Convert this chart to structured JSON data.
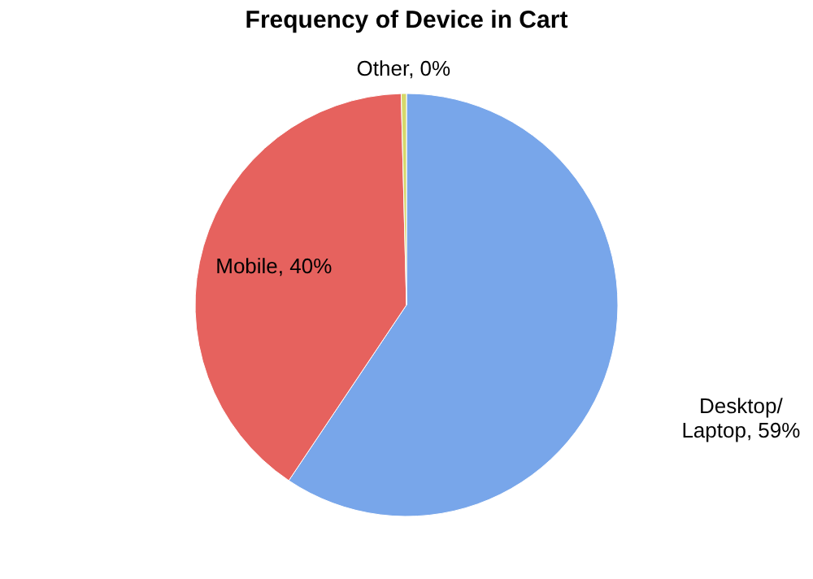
{
  "chart_data": {
    "type": "pie",
    "title": "Frequency of Device in Cart",
    "categories": [
      "Desktop/\nLaptop",
      "Mobile",
      "Other"
    ],
    "values": [
      59.4,
      40.2,
      0.4
    ],
    "value_labels": [
      "59%",
      "40%",
      "0%"
    ],
    "colors": [
      "#78a6ea",
      "#e6625e",
      "#d6d86a"
    ],
    "legend": false
  }
}
